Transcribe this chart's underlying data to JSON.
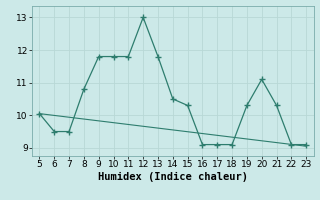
{
  "x": [
    5,
    6,
    7,
    8,
    9,
    10,
    11,
    12,
    13,
    14,
    15,
    16,
    17,
    18,
    19,
    20,
    21,
    22,
    23
  ],
  "y": [
    10.05,
    9.5,
    9.5,
    10.8,
    11.8,
    11.8,
    11.8,
    13.0,
    11.8,
    10.5,
    10.3,
    9.1,
    9.1,
    9.1,
    10.3,
    11.1,
    10.3,
    9.1,
    9.1
  ],
  "trend_x": [
    5,
    23
  ],
  "trend_y": [
    10.05,
    9.05
  ],
  "line_color": "#2e7d6e",
  "bg_color": "#cce9e8",
  "grid_color": "#b8d8d6",
  "xlabel": "Humidex (Indice chaleur)",
  "ylim": [
    8.75,
    13.35
  ],
  "xlim": [
    4.5,
    23.5
  ],
  "yticks": [
    9,
    10,
    11,
    12,
    13
  ],
  "xticks": [
    5,
    6,
    7,
    8,
    9,
    10,
    11,
    12,
    13,
    14,
    15,
    16,
    17,
    18,
    19,
    20,
    21,
    22,
    23
  ],
  "tick_fontsize": 6.5,
  "xlabel_fontsize": 7.5
}
